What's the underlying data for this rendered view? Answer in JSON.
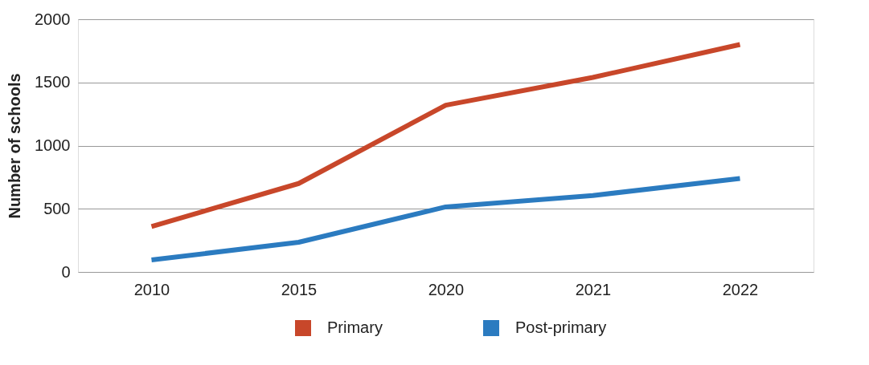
{
  "chart_data": {
    "type": "line",
    "ylabel": "Number of schools",
    "categories": [
      "2010",
      "2015",
      "2020",
      "2021",
      "2022"
    ],
    "series": [
      {
        "name": "Primary",
        "color": "#c8472a",
        "values": [
          360,
          700,
          1320,
          1540,
          1800
        ]
      },
      {
        "name": "Post-primary",
        "color": "#2b7bc0",
        "values": [
          95,
          235,
          515,
          605,
          740
        ]
      }
    ],
    "ylim": [
      0,
      2000
    ],
    "yticks": [
      0,
      500,
      1000,
      1500,
      2000
    ],
    "grid": "y",
    "legend": "bottom",
    "marker": "none",
    "line_style": "solid"
  }
}
